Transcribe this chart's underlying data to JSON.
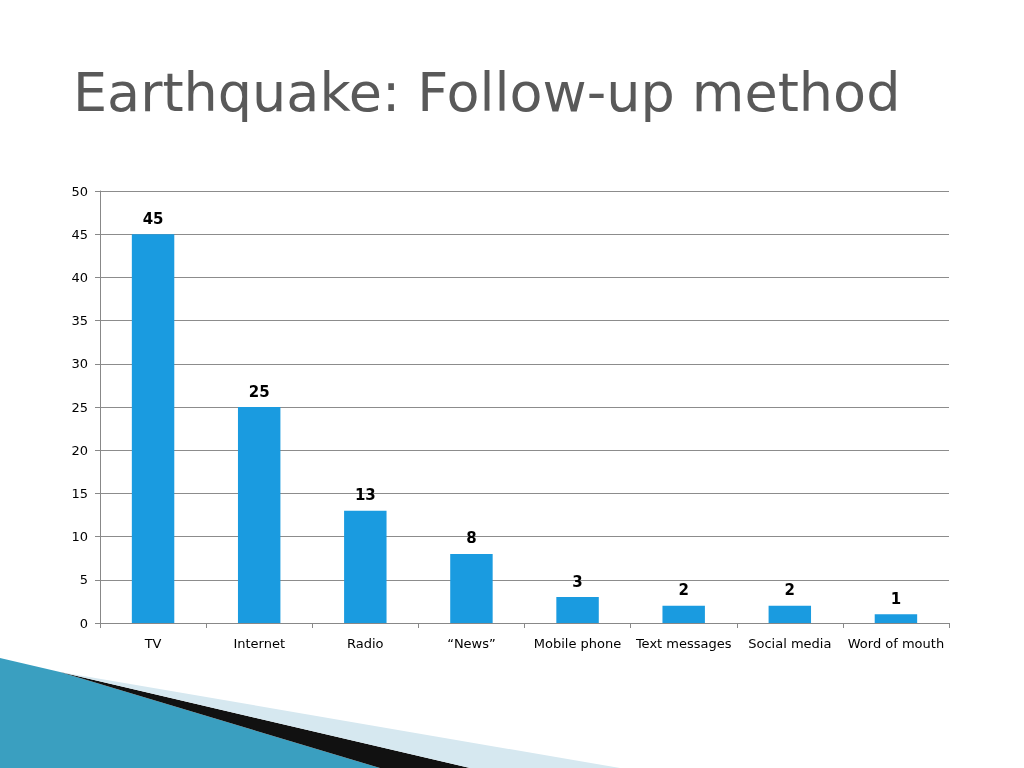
{
  "chart_data": {
    "type": "bar",
    "title": "Earthquake: Follow-up method",
    "categories": [
      "TV",
      "Internet",
      "Radio",
      "“News”",
      "Mobile phone",
      "Text messages",
      "Social media",
      "Word of mouth"
    ],
    "values": [
      45,
      25,
      13,
      8,
      3,
      2,
      2,
      1
    ],
    "color": "#1a9be0",
    "ylim": [
      0,
      50
    ],
    "yticks": [
      0,
      5,
      10,
      15,
      20,
      25,
      30,
      35,
      40,
      45,
      50
    ],
    "grid": "y",
    "data_labels": true
  }
}
